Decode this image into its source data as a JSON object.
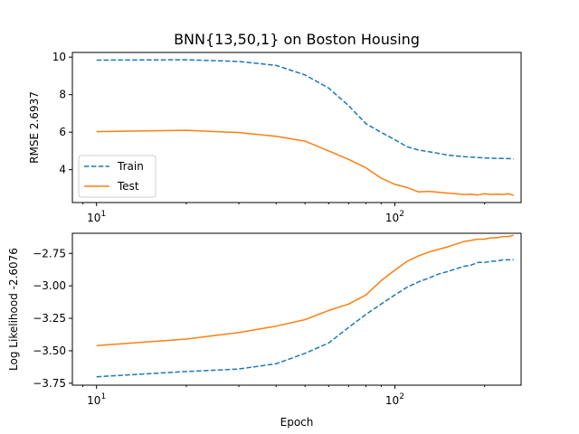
{
  "figure_title": "BNN{13,50,1} on Boston Housing",
  "chart_data": [
    {
      "type": "line",
      "title": "BNN{13,50,1} on Boston Housing",
      "xlabel": "",
      "ylabel": "RMSE 2.6937",
      "xscale": "log",
      "xlim": [
        8.3,
        265
      ],
      "ylim": [
        2.25,
        10.25
      ],
      "yticks": [
        4,
        6,
        8,
        10
      ],
      "ytick_labels": [
        "4",
        "6",
        "8",
        "10"
      ],
      "xticks": [
        10,
        100
      ],
      "grid": false,
      "legend": "lower-left",
      "x": [
        10,
        20,
        30,
        40,
        50,
        60,
        70,
        80,
        90,
        100,
        110,
        120,
        130,
        140,
        150,
        160,
        170,
        180,
        190,
        200,
        210,
        220,
        230,
        240,
        250
      ],
      "series": [
        {
          "name": "Train",
          "style": "dashed",
          "color": "#1f77b4",
          "values": [
            9.84,
            9.86,
            9.77,
            9.56,
            9.05,
            8.35,
            7.41,
            6.45,
            5.99,
            5.6,
            5.22,
            5.05,
            4.96,
            4.87,
            4.78,
            4.73,
            4.7,
            4.67,
            4.65,
            4.63,
            4.61,
            4.6,
            4.6,
            4.59,
            4.58
          ]
        },
        {
          "name": "Test",
          "style": "solid",
          "color": "#ff7f0e",
          "values": [
            6.03,
            6.1,
            5.98,
            5.78,
            5.52,
            5.0,
            4.55,
            4.1,
            3.55,
            3.22,
            3.05,
            2.82,
            2.85,
            2.8,
            2.75,
            2.72,
            2.68,
            2.7,
            2.65,
            2.72,
            2.68,
            2.7,
            2.68,
            2.72,
            2.63
          ]
        }
      ]
    },
    {
      "type": "line",
      "title": "",
      "xlabel": "Epoch",
      "ylabel": "Log Likelihood -2.6076",
      "xscale": "log",
      "xlim": [
        8.3,
        265
      ],
      "ylim": [
        -3.765,
        -2.595
      ],
      "yticks": [
        -3.75,
        -3.5,
        -3.25,
        -3.0,
        -2.75
      ],
      "ytick_labels": [
        "−3.75",
        "−3.50",
        "−3.25",
        "−3.00",
        "−2.75"
      ],
      "xticks": [
        10,
        100
      ],
      "grid": false,
      "legend": "none",
      "x": [
        10,
        20,
        30,
        40,
        50,
        60,
        70,
        80,
        90,
        100,
        110,
        120,
        130,
        140,
        150,
        160,
        170,
        180,
        190,
        200,
        210,
        220,
        230,
        240,
        250
      ],
      "series": [
        {
          "name": "Train",
          "style": "dashed",
          "color": "#1f77b4",
          "values": [
            -3.7,
            -3.66,
            -3.64,
            -3.6,
            -3.52,
            -3.44,
            -3.32,
            -3.22,
            -3.14,
            -3.07,
            -3.01,
            -2.97,
            -2.94,
            -2.91,
            -2.89,
            -2.87,
            -2.85,
            -2.84,
            -2.82,
            -2.82,
            -2.81,
            -2.81,
            -2.8,
            -2.8,
            -2.8
          ]
        },
        {
          "name": "Test",
          "style": "solid",
          "color": "#ff7f0e",
          "values": [
            -3.46,
            -3.41,
            -3.36,
            -3.31,
            -3.26,
            -3.19,
            -3.14,
            -3.07,
            -2.96,
            -2.88,
            -2.81,
            -2.77,
            -2.74,
            -2.72,
            -2.7,
            -2.68,
            -2.66,
            -2.65,
            -2.64,
            -2.64,
            -2.63,
            -2.63,
            -2.62,
            -2.62,
            -2.61
          ]
        }
      ]
    }
  ]
}
